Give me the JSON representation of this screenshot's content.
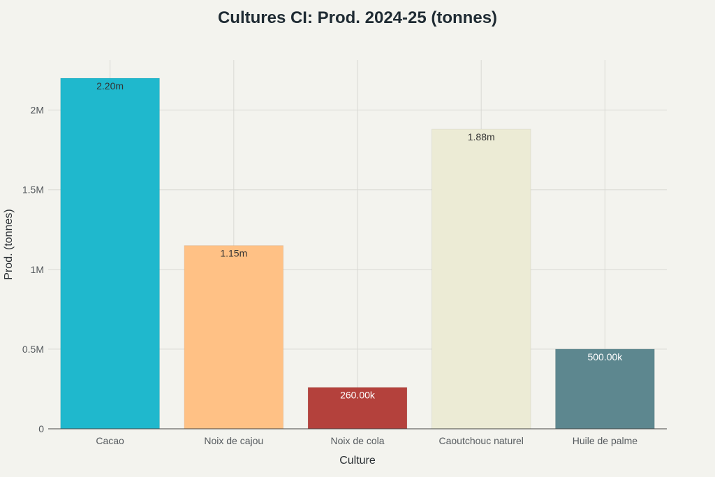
{
  "chart_data": {
    "type": "bar",
    "title": "Cultures CI: Prod. 2024-25 (tonnes)",
    "xlabel": "Culture",
    "ylabel": "Prod. (tonnes)",
    "categories": [
      "Cacao",
      "Noix de cajou",
      "Noix de cola",
      "Caoutchouc naturel",
      "Huile de palme"
    ],
    "values": [
      2200000,
      1150000,
      260000,
      1880000,
      500000
    ],
    "data_labels": [
      "2.20m",
      "1.15m",
      "260.00k",
      "1.88m",
      "500.00k"
    ],
    "colors": [
      "#1fb8cd",
      "#ffc185",
      "#b4413c",
      "#ecebd5",
      "#5d878f"
    ],
    "label_colors": [
      "#333333",
      "#333333",
      "#ffffff",
      "#333333",
      "#ffffff"
    ],
    "ylim": [
      0,
      2200000
    ],
    "y_ticks": [
      0,
      500000,
      1000000,
      1500000,
      2000000
    ],
    "y_tick_labels": [
      "0",
      "0.5M",
      "1M",
      "1.5M",
      "2M"
    ],
    "grid": true,
    "legend": "none"
  }
}
